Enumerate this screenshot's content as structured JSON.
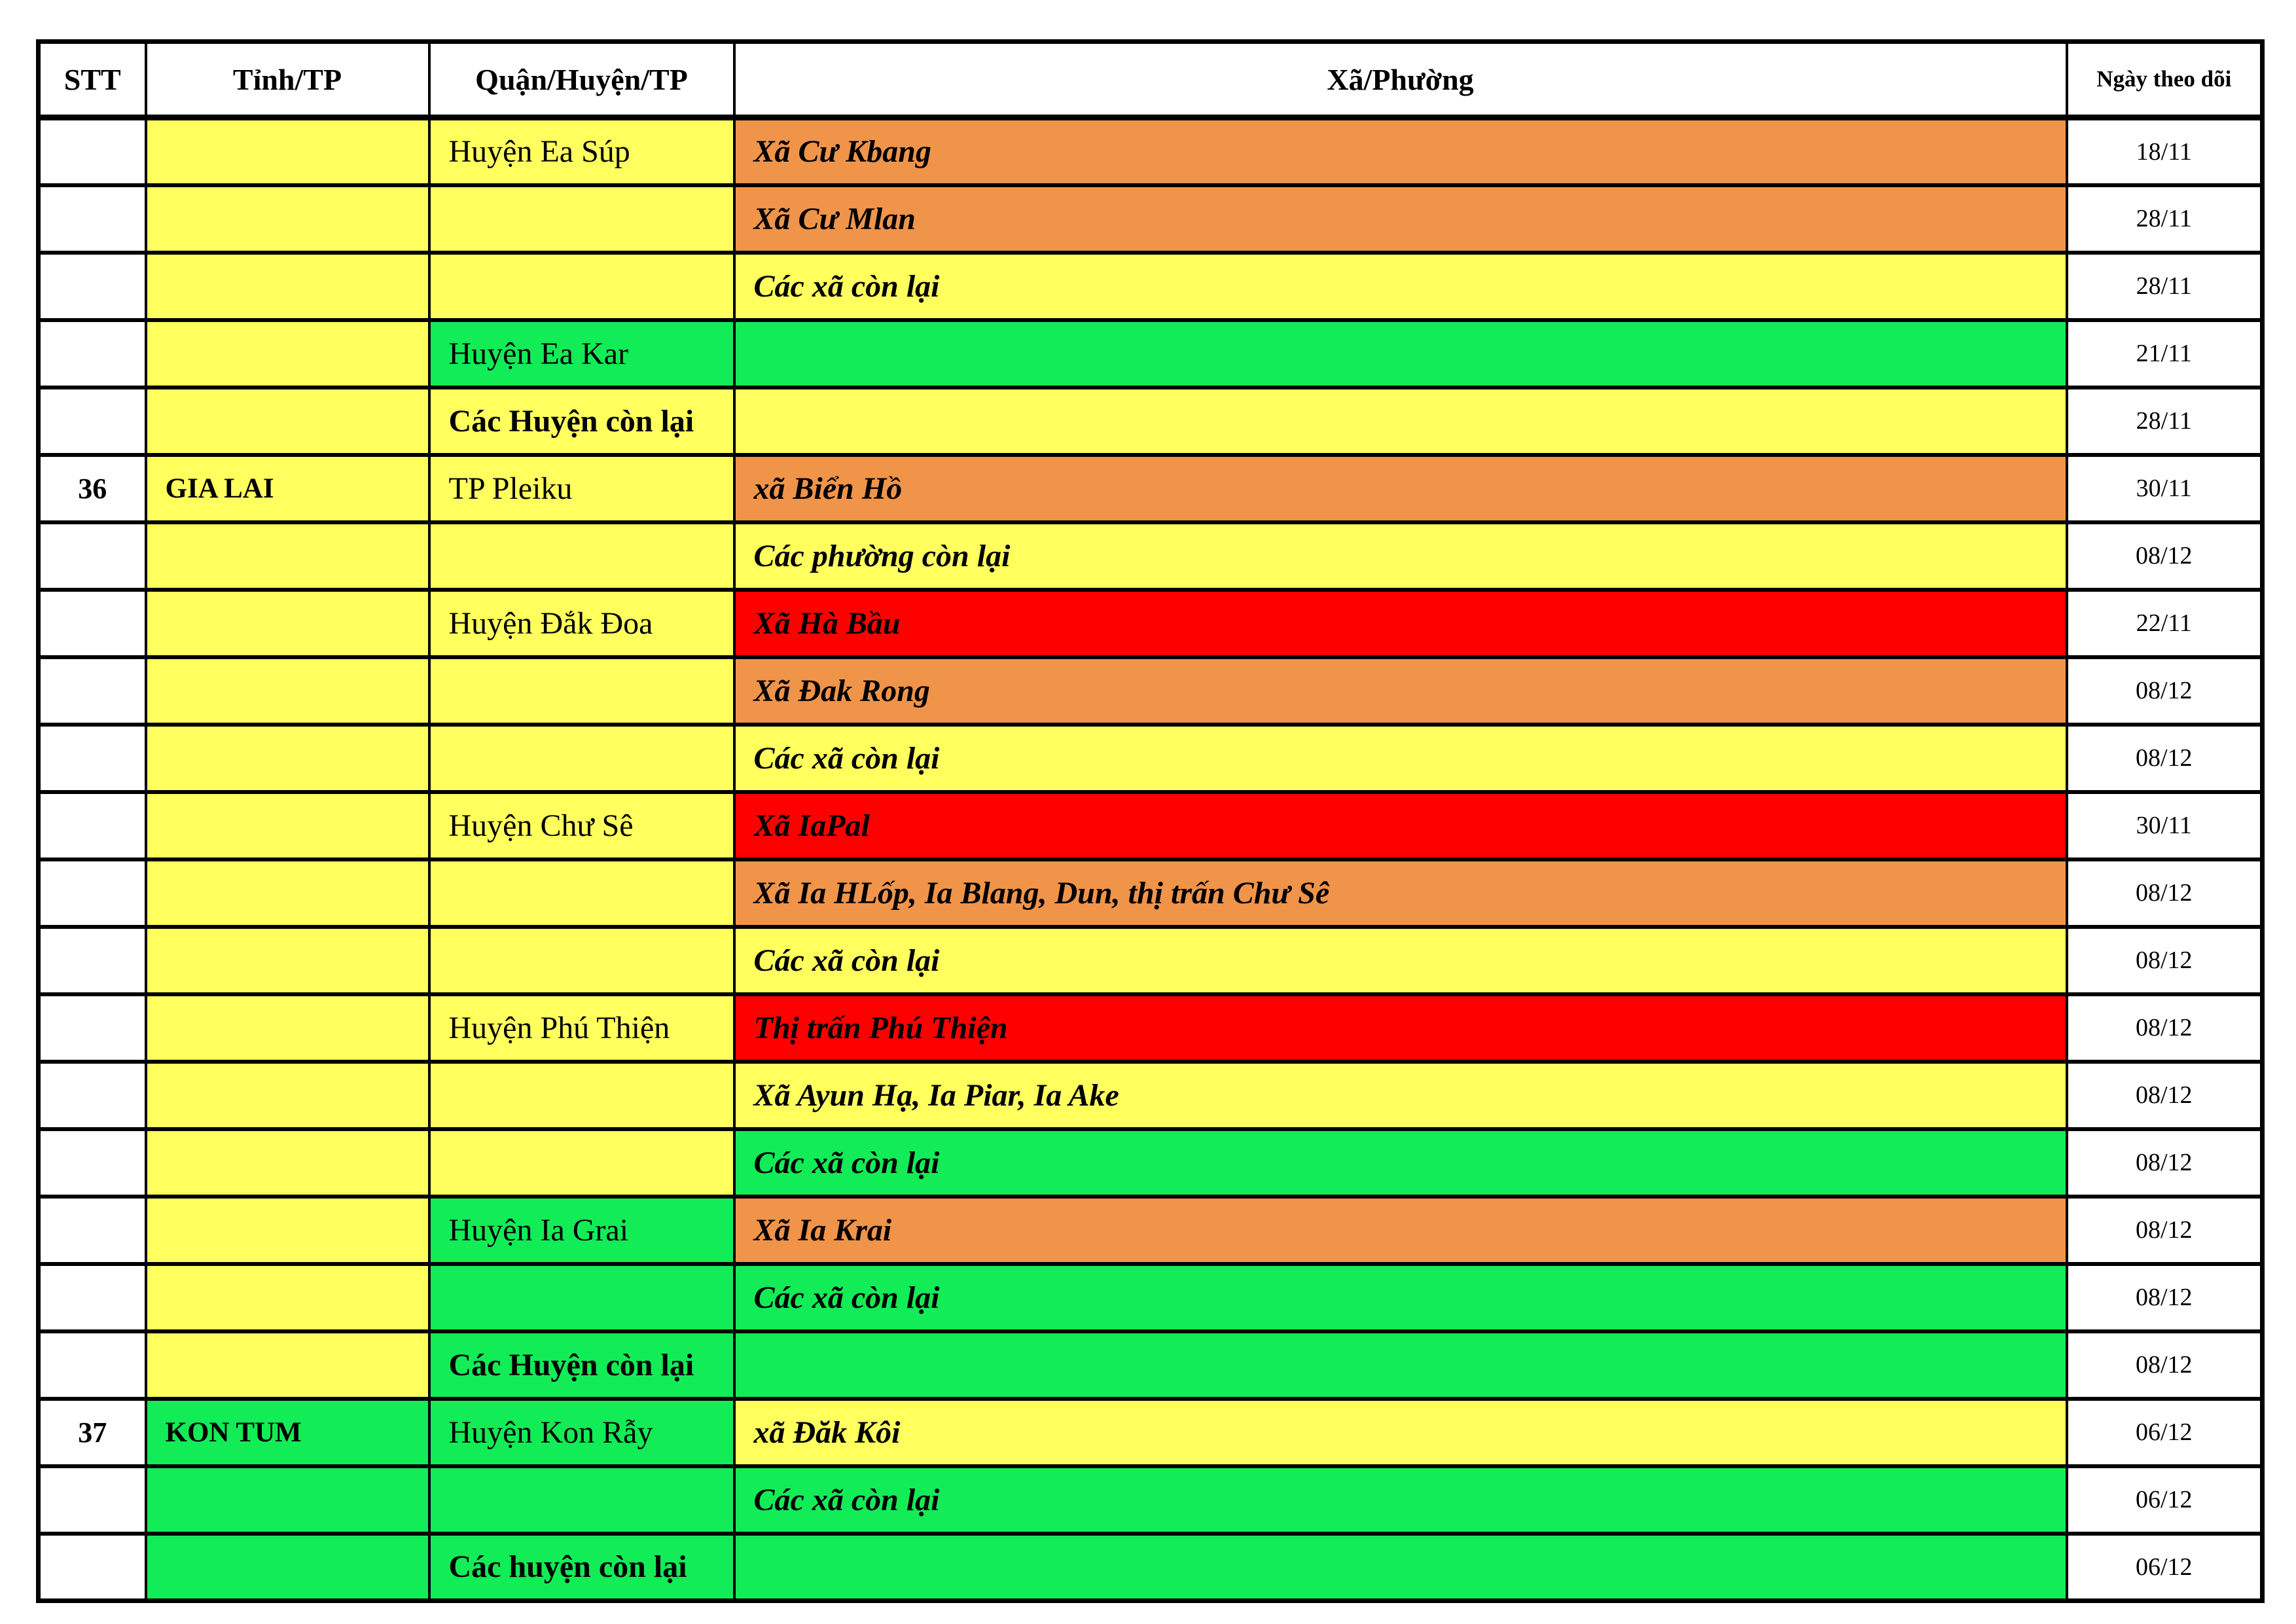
{
  "table": {
    "columns": [
      {
        "label": "STT"
      },
      {
        "label": "Tỉnh/TP"
      },
      {
        "label": "Quận/Huyện/TP"
      },
      {
        "label": "Xã/Phường"
      },
      {
        "label": "Ngày theo dõi"
      }
    ],
    "colors": {
      "yellow": "#FFFF5E",
      "orange": "#F0944A",
      "red": "#FF0000",
      "green": "#12EC57",
      "white": "#FFFFFF"
    },
    "rows": [
      {
        "stt": "",
        "province": {
          "text": "",
          "bg": "yellow"
        },
        "district": {
          "text": "Huyện Ea Súp",
          "bg": "yellow",
          "bold": false
        },
        "commune": {
          "text": "Xã Cư Kbang",
          "bg": "orange"
        },
        "date": "18/11"
      },
      {
        "stt": "",
        "province": {
          "text": "",
          "bg": "yellow"
        },
        "district": {
          "text": "",
          "bg": "yellow",
          "bold": false
        },
        "commune": {
          "text": "Xã Cư Mlan",
          "bg": "orange"
        },
        "date": "28/11"
      },
      {
        "stt": "",
        "province": {
          "text": "",
          "bg": "yellow"
        },
        "district": {
          "text": "",
          "bg": "yellow",
          "bold": false
        },
        "commune": {
          "text": "Các xã còn lại",
          "bg": "yellow"
        },
        "date": "28/11"
      },
      {
        "stt": "",
        "province": {
          "text": "",
          "bg": "yellow"
        },
        "district": {
          "text": "Huyện Ea Kar",
          "bg": "green",
          "bold": false
        },
        "commune": {
          "text": "",
          "bg": "green"
        },
        "date": "21/11"
      },
      {
        "stt": "",
        "province": {
          "text": "",
          "bg": "yellow"
        },
        "district": {
          "text": "Các Huyện còn lại",
          "bg": "yellow",
          "bold": true
        },
        "commune": {
          "text": "",
          "bg": "yellow"
        },
        "date": "28/11"
      },
      {
        "stt": "36",
        "province": {
          "text": "GIA LAI",
          "bg": "yellow"
        },
        "district": {
          "text": "TP Pleiku",
          "bg": "yellow",
          "bold": false
        },
        "commune": {
          "text": "xã Biển Hồ",
          "bg": "orange"
        },
        "date": "30/11"
      },
      {
        "stt": "",
        "province": {
          "text": "",
          "bg": "yellow"
        },
        "district": {
          "text": "",
          "bg": "yellow",
          "bold": false
        },
        "commune": {
          "text": "Các phường còn lại",
          "bg": "yellow"
        },
        "date": "08/12"
      },
      {
        "stt": "",
        "province": {
          "text": "",
          "bg": "yellow"
        },
        "district": {
          "text": "Huyện Đắk Đoa",
          "bg": "yellow",
          "bold": false
        },
        "commune": {
          "text": "Xã Hà Bầu",
          "bg": "red"
        },
        "date": "22/11"
      },
      {
        "stt": "",
        "province": {
          "text": "",
          "bg": "yellow"
        },
        "district": {
          "text": "",
          "bg": "yellow",
          "bold": false
        },
        "commune": {
          "text": "Xã Đak Rong",
          "bg": "orange"
        },
        "date": "08/12"
      },
      {
        "stt": "",
        "province": {
          "text": "",
          "bg": "yellow"
        },
        "district": {
          "text": "",
          "bg": "yellow",
          "bold": false
        },
        "commune": {
          "text": "Các xã còn lại",
          "bg": "yellow"
        },
        "date": "08/12"
      },
      {
        "stt": "",
        "province": {
          "text": "",
          "bg": "yellow"
        },
        "district": {
          "text": "Huyện Chư Sê",
          "bg": "yellow",
          "bold": false
        },
        "commune": {
          "text": "Xã IaPal",
          "bg": "red"
        },
        "date": "30/11"
      },
      {
        "stt": "",
        "province": {
          "text": "",
          "bg": "yellow"
        },
        "district": {
          "text": "",
          "bg": "yellow",
          "bold": false
        },
        "commune": {
          "text": "Xã Ia HLốp, Ia Blang, Dun, thị trấn Chư Sê",
          "bg": "orange"
        },
        "date": "08/12"
      },
      {
        "stt": "",
        "province": {
          "text": "",
          "bg": "yellow"
        },
        "district": {
          "text": "",
          "bg": "yellow",
          "bold": false
        },
        "commune": {
          "text": "Các xã còn lại",
          "bg": "yellow"
        },
        "date": "08/12"
      },
      {
        "stt": "",
        "province": {
          "text": "",
          "bg": "yellow"
        },
        "district": {
          "text": "Huyện Phú Thiện",
          "bg": "yellow",
          "bold": false
        },
        "commune": {
          "text": "Thị trấn Phú Thiện",
          "bg": "red"
        },
        "date": "08/12"
      },
      {
        "stt": "",
        "province": {
          "text": "",
          "bg": "yellow"
        },
        "district": {
          "text": "",
          "bg": "yellow",
          "bold": false
        },
        "commune": {
          "text": "Xã Ayun Hạ, Ia Piar, Ia Ake",
          "bg": "yellow"
        },
        "date": "08/12"
      },
      {
        "stt": "",
        "province": {
          "text": "",
          "bg": "yellow"
        },
        "district": {
          "text": "",
          "bg": "yellow",
          "bold": false
        },
        "commune": {
          "text": "Các xã còn lại",
          "bg": "green"
        },
        "date": "08/12"
      },
      {
        "stt": "",
        "province": {
          "text": "",
          "bg": "yellow"
        },
        "district": {
          "text": "Huyện Ia Grai",
          "bg": "green",
          "bold": false
        },
        "commune": {
          "text": "Xã Ia Krai",
          "bg": "orange"
        },
        "date": "08/12"
      },
      {
        "stt": "",
        "province": {
          "text": "",
          "bg": "yellow"
        },
        "district": {
          "text": "",
          "bg": "green",
          "bold": false
        },
        "commune": {
          "text": "Các xã còn lại",
          "bg": "green"
        },
        "date": "08/12"
      },
      {
        "stt": "",
        "province": {
          "text": "",
          "bg": "yellow"
        },
        "district": {
          "text": "Các Huyện còn lại",
          "bg": "green",
          "bold": true
        },
        "commune": {
          "text": "",
          "bg": "green"
        },
        "date": "08/12"
      },
      {
        "stt": "37",
        "province": {
          "text": "KON TUM",
          "bg": "green"
        },
        "district": {
          "text": "Huyện Kon Rẫy",
          "bg": "green",
          "bold": false
        },
        "commune": {
          "text": "xã Đăk Kôi",
          "bg": "yellow"
        },
        "date": "06/12"
      },
      {
        "stt": "",
        "province": {
          "text": "",
          "bg": "green"
        },
        "district": {
          "text": "",
          "bg": "green",
          "bold": false
        },
        "commune": {
          "text": "Các xã còn lại",
          "bg": "green"
        },
        "date": "06/12"
      },
      {
        "stt": "",
        "province": {
          "text": "",
          "bg": "green"
        },
        "district": {
          "text": "Các huyện còn lại",
          "bg": "green",
          "bold": true
        },
        "commune": {
          "text": "",
          "bg": "green"
        },
        "date": "06/12"
      }
    ]
  }
}
